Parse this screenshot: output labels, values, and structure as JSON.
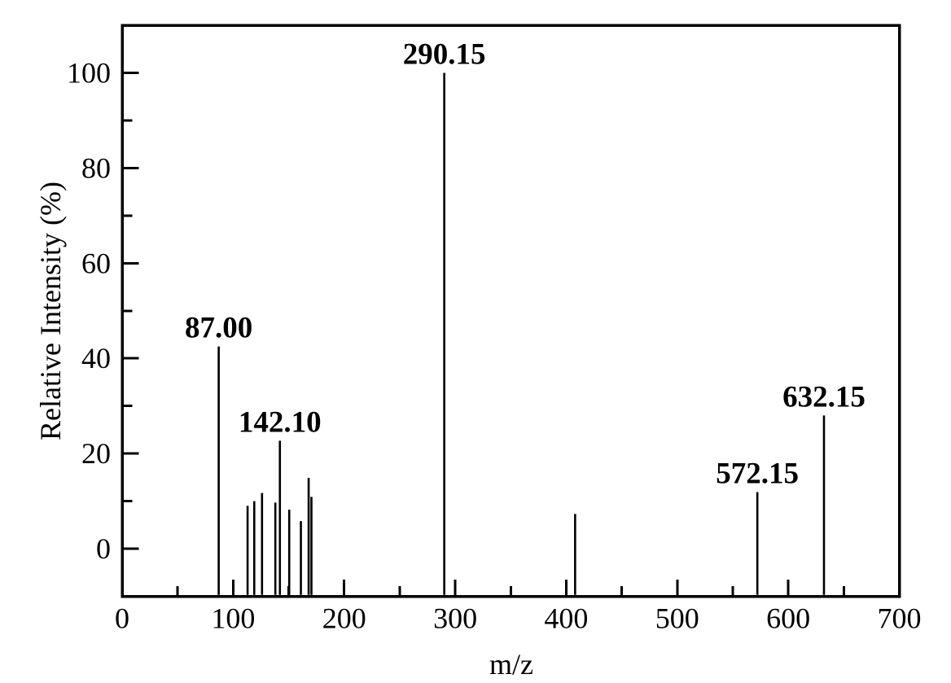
{
  "chart_data": {
    "type": "bar",
    "subtype": "mass-spectrum-stick-plot",
    "title": "",
    "xlabel": "m/z",
    "ylabel": "Relative Intensity (%)",
    "xlim": [
      0,
      700
    ],
    "ylim": [
      -10,
      110
    ],
    "grid": false,
    "legend": null,
    "background_color": "#ffffff",
    "line_color": "#000000",
    "x_axis": {
      "major_ticks": [
        0,
        100,
        200,
        300,
        400,
        500,
        600,
        700
      ],
      "tick_labels": [
        "0",
        "100",
        "200",
        "300",
        "400",
        "500",
        "600",
        "700"
      ],
      "minor_tick_step": 50
    },
    "y_axis": {
      "major_ticks": [
        0,
        20,
        40,
        60,
        80,
        100
      ],
      "tick_labels": [
        "0",
        "20",
        "40",
        "60",
        "80",
        "100"
      ],
      "minor_tick_step": 10
    },
    "peaks": [
      {
        "mz": 87.0,
        "intensity": 42.5,
        "label": "87.00"
      },
      {
        "mz": 113.0,
        "intensity": 9.0,
        "label": ""
      },
      {
        "mz": 119.0,
        "intensity": 10.0,
        "label": ""
      },
      {
        "mz": 126.0,
        "intensity": 11.7,
        "label": ""
      },
      {
        "mz": 138.0,
        "intensity": 9.7,
        "label": ""
      },
      {
        "mz": 142.1,
        "intensity": 22.7,
        "label": "142.10"
      },
      {
        "mz": 150.5,
        "intensity": 8.2,
        "label": ""
      },
      {
        "mz": 161.0,
        "intensity": 5.8,
        "label": ""
      },
      {
        "mz": 168.0,
        "intensity": 14.9,
        "label": ""
      },
      {
        "mz": 170.5,
        "intensity": 10.9,
        "label": ""
      },
      {
        "mz": 290.15,
        "intensity": 100.0,
        "label": "290.15"
      },
      {
        "mz": 408.0,
        "intensity": 7.3,
        "label": ""
      },
      {
        "mz": 572.15,
        "intensity": 11.9,
        "label": "572.15"
      },
      {
        "mz": 632.15,
        "intensity": 28.0,
        "label": "632.15"
      }
    ]
  }
}
